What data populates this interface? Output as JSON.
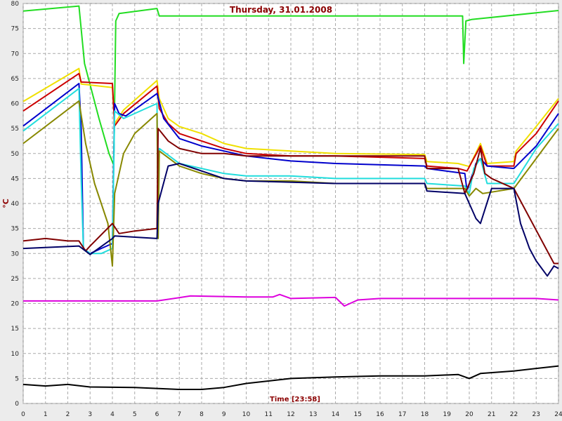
{
  "chart_data": {
    "type": "line",
    "title": "Thursday, 31.01.2008",
    "x_label": "Time [23:58]",
    "y_label": "°C",
    "xlim": [
      0,
      24
    ],
    "ylim": [
      0,
      80
    ],
    "xticks": [
      0,
      1,
      2,
      3,
      4,
      5,
      6,
      7,
      8,
      9,
      10,
      11,
      12,
      13,
      14,
      15,
      16,
      17,
      18,
      19,
      20,
      21,
      22,
      23,
      24
    ],
    "yticks": [
      0,
      5,
      10,
      15,
      20,
      25,
      30,
      35,
      40,
      45,
      50,
      55,
      60,
      65,
      70,
      75,
      80
    ],
    "grid": true,
    "series": [
      {
        "color": "#22dd22",
        "x": [
          0,
          2.5,
          2.75,
          3.4,
          3.85,
          4.06,
          4.15,
          4.3,
          6,
          6.1,
          10,
          19.7,
          19.75,
          19.85,
          20.1,
          24
        ],
        "values": [
          78.5,
          79.5,
          68,
          57,
          50,
          47.7,
          76.5,
          78,
          79,
          77.5,
          77.5,
          77.5,
          68,
          76.5,
          76.8,
          78.6
        ]
      },
      {
        "color": "#f0e000",
        "x": [
          0,
          2.5,
          2.6,
          4,
          4.1,
          4.5,
          6,
          6.1,
          6.5,
          7,
          8,
          9,
          10,
          12,
          14,
          18,
          18.1,
          19.5,
          20,
          20.5,
          20.8,
          22,
          22.1,
          23,
          24
        ],
        "values": [
          60.4,
          67,
          63.9,
          63.2,
          56,
          58.7,
          64.6,
          61,
          57,
          55.4,
          54,
          52,
          51,
          50.5,
          50,
          49.8,
          48.4,
          48,
          47.4,
          52,
          48,
          48.4,
          50.5,
          55.4,
          61
        ]
      },
      {
        "color": "#cc0000",
        "x": [
          0,
          2.5,
          2.6,
          4,
          4.1,
          4.5,
          6,
          6.1,
          6.5,
          7,
          8,
          9,
          10,
          12,
          14,
          18,
          18.1,
          19.5,
          19.9,
          20.5,
          20.8,
          22,
          22.1,
          23,
          24
        ],
        "values": [
          58.5,
          66,
          64.3,
          64,
          55.5,
          58,
          63.5,
          59,
          56,
          54,
          52.5,
          51,
          50,
          49.5,
          49.5,
          49,
          47.5,
          47,
          46.5,
          51.5,
          47.5,
          47.5,
          50,
          54,
          60.5
        ]
      },
      {
        "color": "#0000cc",
        "x": [
          0,
          2.5,
          2.6,
          2.7,
          3,
          3.5,
          4,
          4.1,
          4.3,
          4.6,
          6,
          6.3,
          7,
          8,
          9,
          10,
          12,
          14,
          18,
          18.1,
          19.8,
          19.9,
          20.3,
          20.5,
          20.8,
          22,
          23,
          24
        ],
        "values": [
          55.5,
          64,
          55,
          31,
          30,
          31,
          32,
          60,
          58,
          57.5,
          62,
          57,
          53,
          51.5,
          50.5,
          49.5,
          48.5,
          48,
          47.5,
          47,
          46,
          42.5,
          48,
          49,
          47.5,
          47,
          51.5,
          58
        ]
      },
      {
        "color": "#22dddd",
        "x": [
          0,
          2.5,
          2.6,
          2.7,
          3,
          3.5,
          4,
          4.1,
          4.5,
          6,
          6.05,
          6.1,
          7,
          8,
          9,
          10,
          12,
          14,
          18,
          18.1,
          19.8,
          20,
          20.2,
          20.5,
          20.8,
          22,
          23,
          24
        ],
        "values": [
          54.5,
          63,
          45,
          31,
          30,
          30,
          31,
          58.5,
          57,
          60,
          33,
          51,
          48,
          47,
          46,
          45.5,
          45.5,
          45,
          45,
          44,
          43.5,
          42,
          47,
          49,
          44,
          44,
          51,
          56
        ]
      },
      {
        "color": "#888800",
        "x": [
          0,
          2.5,
          2.8,
          3.2,
          3.8,
          4,
          4.1,
          4.5,
          5,
          6,
          6.05,
          6.1,
          7,
          8,
          9,
          10,
          12,
          14,
          18,
          18.1,
          19.8,
          20,
          20.3,
          20.6,
          22,
          23,
          24
        ],
        "values": [
          52,
          60.5,
          52,
          44,
          36,
          27.5,
          42,
          50,
          54,
          58,
          33,
          50.5,
          47.5,
          46,
          45,
          44.5,
          44.5,
          44,
          44,
          43,
          43,
          41.5,
          43,
          42,
          43,
          49,
          55
        ]
      },
      {
        "color": "#800000",
        "x": [
          0,
          1,
          2,
          2.5,
          2.8,
          3,
          4,
          4.3,
          5,
          6,
          6.05,
          6.5,
          7,
          8,
          9,
          10,
          14,
          18,
          18.1,
          19.5,
          19.8,
          20.2,
          20.5,
          20.7,
          21,
          22,
          23.8,
          24
        ],
        "values": [
          32.5,
          33,
          32.5,
          32.5,
          30.5,
          31.5,
          36,
          34,
          34.5,
          35,
          55,
          52.5,
          51,
          50,
          50,
          49.5,
          49.5,
          49.5,
          47,
          47,
          42,
          46,
          51,
          46,
          45,
          43,
          28,
          28
        ]
      },
      {
        "color": "#000066",
        "x": [
          0,
          2.5,
          3,
          4,
          4.1,
          6,
          6.05,
          6.5,
          7,
          8,
          9,
          10,
          14,
          18,
          18.1,
          19.8,
          20,
          20.3,
          20.5,
          21,
          22,
          22.3,
          22.7,
          23,
          23.5,
          23.8,
          24
        ],
        "values": [
          31,
          31.5,
          29.8,
          33,
          33.5,
          33,
          40,
          47.5,
          48,
          46.5,
          45,
          44.5,
          44,
          44,
          42.5,
          42,
          40,
          37,
          36,
          43,
          43,
          36,
          31,
          28.5,
          25.5,
          27.5,
          27
        ]
      },
      {
        "color": "#dd00dd",
        "x": [
          0,
          6,
          7.5,
          10,
          11.2,
          11.5,
          12,
          14,
          14.4,
          15,
          16,
          20,
          23,
          24
        ],
        "values": [
          20.5,
          20.5,
          21.5,
          21.3,
          21.3,
          21.8,
          21,
          21.2,
          19.5,
          20.7,
          21,
          21,
          21,
          20.7
        ]
      },
      {
        "color": "#000000",
        "x": [
          0,
          1,
          2,
          3,
          5,
          7,
          8,
          9,
          10,
          12,
          14,
          16,
          18,
          19.5,
          20,
          20.5,
          22,
          24
        ],
        "values": [
          3.8,
          3.5,
          3.8,
          3.3,
          3.2,
          2.8,
          2.8,
          3.2,
          4,
          5,
          5.3,
          5.5,
          5.5,
          5.8,
          5,
          6,
          6.5,
          7.5
        ]
      }
    ]
  }
}
